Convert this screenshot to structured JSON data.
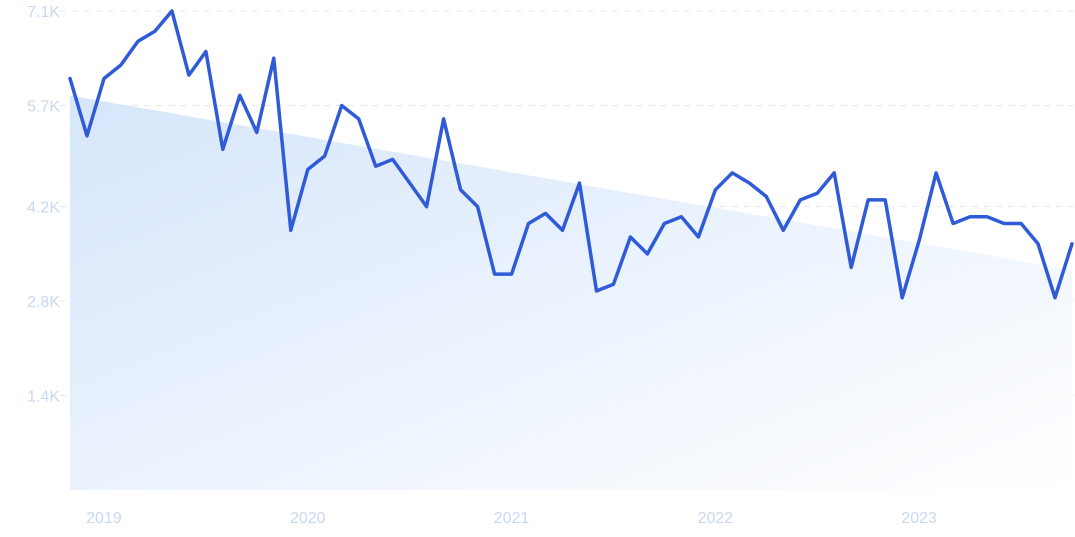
{
  "chart_data": {
    "type": "line",
    "title": "",
    "xlabel": "",
    "ylabel": "",
    "ylim": [
      0,
      7100
    ],
    "yticks": [
      {
        "value": 1400,
        "label": "1.4K"
      },
      {
        "value": 2800,
        "label": "2.8K"
      },
      {
        "value": 4200,
        "label": "4.2K"
      },
      {
        "value": 5700,
        "label": "5.7K"
      },
      {
        "value": 7100,
        "label": "7.1K"
      }
    ],
    "xticks": [
      {
        "value": "2019-01",
        "label": "2019"
      },
      {
        "value": "2020-01",
        "label": "2020"
      },
      {
        "value": "2021-01",
        "label": "2021"
      },
      {
        "value": "2022-01",
        "label": "2022"
      },
      {
        "value": "2023-01",
        "label": "2023"
      }
    ],
    "grid": true,
    "colors": {
      "line": "#2f5bd8",
      "fill_top": "#dbe8fb",
      "fill_bottom": "#ffffff",
      "tick": "#c9d7f2"
    },
    "x": [
      "2018-11",
      "2018-12",
      "2019-01",
      "2019-02",
      "2019-03",
      "2019-04",
      "2019-05",
      "2019-06",
      "2019-07",
      "2019-08",
      "2019-09",
      "2019-10",
      "2019-11",
      "2019-12",
      "2020-01",
      "2020-02",
      "2020-03",
      "2020-04",
      "2020-05",
      "2020-06",
      "2020-07",
      "2020-08",
      "2020-09",
      "2020-10",
      "2020-11",
      "2020-12",
      "2021-01",
      "2021-02",
      "2021-03",
      "2021-04",
      "2021-05",
      "2021-06",
      "2021-07",
      "2021-08",
      "2021-09",
      "2021-10",
      "2021-11",
      "2021-12",
      "2022-01",
      "2022-02",
      "2022-03",
      "2022-04",
      "2022-05",
      "2022-06",
      "2022-07",
      "2022-08",
      "2022-09",
      "2022-10",
      "2022-11",
      "2022-12",
      "2023-01",
      "2023-02",
      "2023-03",
      "2023-04",
      "2023-05",
      "2023-06",
      "2023-07",
      "2023-08",
      "2023-09",
      "2023-10"
    ],
    "series": [
      {
        "values": [
          6100,
          5250,
          6100,
          6300,
          6650,
          6800,
          7100,
          6150,
          6500,
          5050,
          5850,
          5300,
          6400,
          3850,
          4750,
          4950,
          5700,
          5500,
          4800,
          4900,
          4550,
          4200,
          5500,
          4450,
          4200,
          3200,
          3200,
          3950,
          4100,
          3850,
          4550,
          2950,
          3050,
          3750,
          3500,
          3950,
          4050,
          3750,
          4450,
          4700,
          4550,
          4350,
          3850,
          4300,
          4400,
          4700,
          3300,
          4300,
          4300,
          2850,
          3700,
          4700,
          3950,
          4050,
          4050,
          3950,
          3950,
          3650,
          2850,
          3650
        ]
      }
    ]
  }
}
